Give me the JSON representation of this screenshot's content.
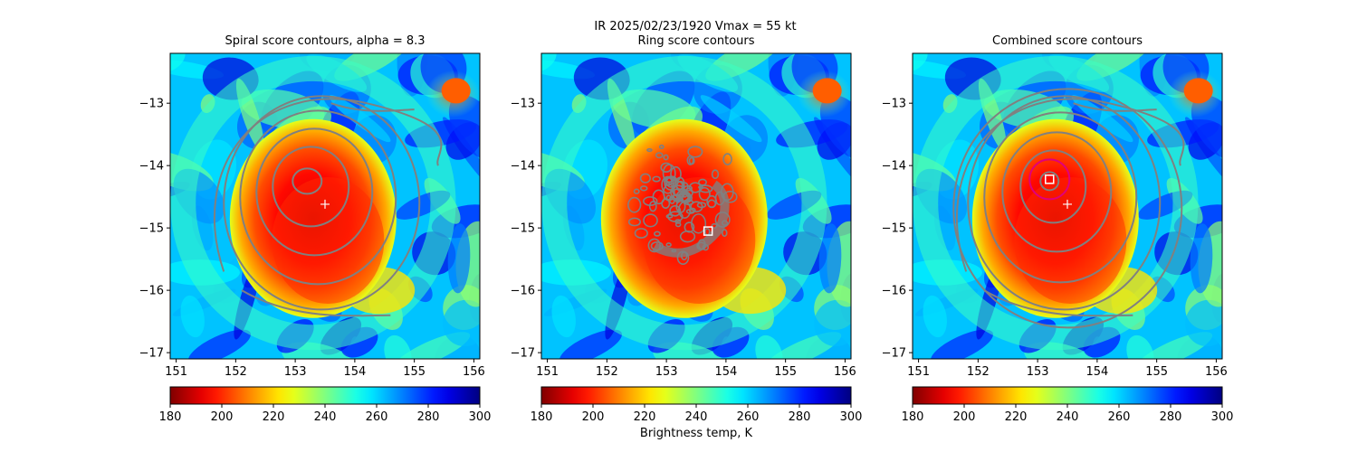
{
  "figure": {
    "suptitle_line1": "IR  2025/02/23/1920    Vmax = 55 kt"
  },
  "panel_titles": [
    "Spiral score contours, alpha =  8.3",
    "Ring score contours",
    "Combined score contours"
  ],
  "colorbar": {
    "label": "Brightness temp, K",
    "min": 180,
    "max": 300,
    "ticks": [
      180,
      200,
      220,
      240,
      260,
      280,
      300
    ],
    "tick_labels": [
      "180",
      "200",
      "220",
      "240",
      "260",
      "280",
      "300"
    ],
    "colormap": "jet_r"
  },
  "chart_data": [
    {
      "type": "heatmap",
      "title": "Spiral score contours, alpha =  8.3",
      "xlim": [
        150.9,
        156.1
      ],
      "ylim": [
        -17.1,
        -12.2
      ],
      "xticks": [
        151,
        152,
        153,
        154,
        155,
        156
      ],
      "xtick_labels": [
        "151",
        "152",
        "153",
        "154",
        "155",
        "156"
      ],
      "yticks": [
        -13,
        -14,
        -15,
        -16,
        -17
      ],
      "ytick_labels": [
        "−13",
        "−14",
        "−15",
        "−16",
        "−17"
      ],
      "overlay": "spiral score contours (gray)",
      "markers": [
        {
          "symbol": "+",
          "lon": 153.5,
          "lat": -14.62,
          "color": "#ffffff"
        }
      ]
    },
    {
      "type": "heatmap",
      "title": "Ring score contours",
      "xlim": [
        150.9,
        156.1
      ],
      "ylim": [
        -17.1,
        -12.2
      ],
      "xticks": [
        151,
        152,
        153,
        154,
        155,
        156
      ],
      "xtick_labels": [
        "151",
        "152",
        "153",
        "154",
        "155",
        "156"
      ],
      "yticks": [
        -13,
        -14,
        -15,
        -16,
        -17
      ],
      "ytick_labels": [
        "−13",
        "−14",
        "−15",
        "−16",
        "−17"
      ],
      "overlay": "ring score contours (gray)",
      "markers": [
        {
          "symbol": "square",
          "lon": 153.7,
          "lat": -15.05,
          "color": "#ffffff"
        }
      ]
    },
    {
      "type": "heatmap",
      "title": "Combined score contours",
      "xlim": [
        150.9,
        156.1
      ],
      "ylim": [
        -17.1,
        -12.2
      ],
      "xticks": [
        151,
        152,
        153,
        154,
        155,
        156
      ],
      "xtick_labels": [
        "151",
        "152",
        "153",
        "154",
        "155",
        "156"
      ],
      "yticks": [
        -13,
        -14,
        -15,
        -16,
        -17
      ],
      "ytick_labels": [
        "−13",
        "−14",
        "−15",
        "−16",
        "−17"
      ],
      "overlay": "combined score contours (gray)",
      "markers": [
        {
          "symbol": "+",
          "lon": 153.5,
          "lat": -14.62,
          "color": "#ffffff"
        },
        {
          "symbol": "square",
          "lon": 153.2,
          "lat": -14.22,
          "color": "#ffffff"
        },
        {
          "symbol": "circle",
          "lon": 153.2,
          "lat": -14.22,
          "color": "#e0007a"
        }
      ]
    }
  ]
}
